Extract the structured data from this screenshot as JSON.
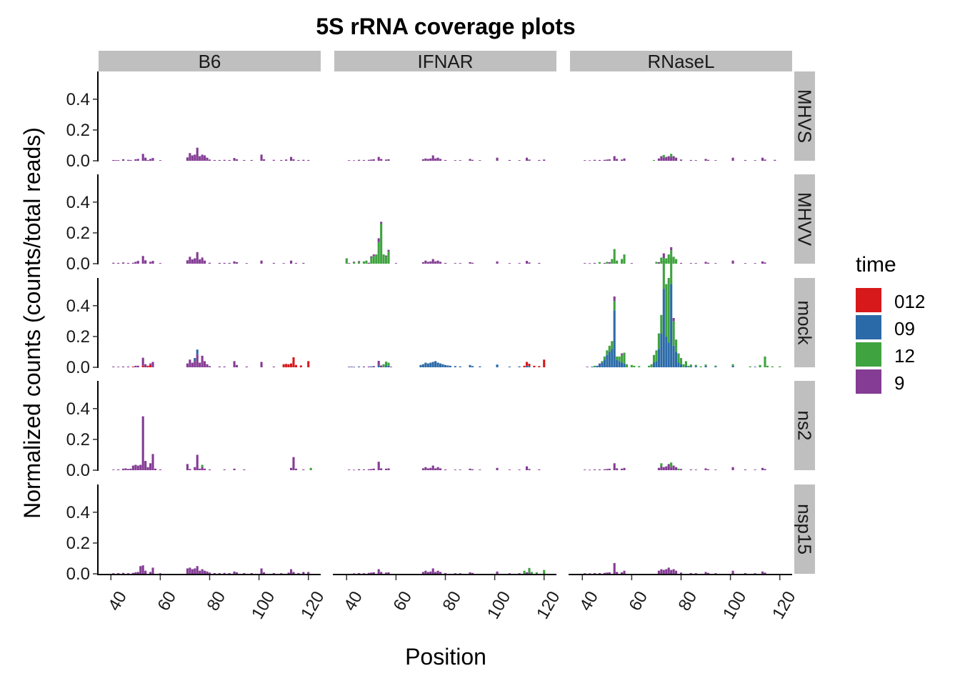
{
  "chart_data": {
    "type": "bar",
    "title": "5S rRNA coverage plots",
    "xlabel": "Position",
    "ylabel": "Normalized counts (counts/total reads)",
    "xlim": [
      35,
      125
    ],
    "ylim": [
      0,
      0.58
    ],
    "x_ticks": [
      40,
      60,
      80,
      100,
      120
    ],
    "y_ticks": [
      0.0,
      0.2,
      0.4
    ],
    "y_tick_labels": [
      "0.0",
      "0.2",
      "0.4"
    ],
    "facet_columns": [
      "B6",
      "IFNAR",
      "RNaseL"
    ],
    "facet_rows": [
      "MHVS",
      "MHVV",
      "mock",
      "ns2",
      "nsp15"
    ],
    "legend": {
      "title": "time",
      "placement": "right",
      "entries": [
        {
          "label": "012",
          "color": "#d7191c"
        },
        {
          "label": "09",
          "color": "#2b6aa8"
        },
        {
          "label": "12",
          "color": "#3fa33f"
        },
        {
          "label": "9",
          "color": "#843c94"
        }
      ]
    },
    "panels": {
      "B6|MHVS": [
        {
          "t": "9",
          "v": {
            "41": 0.005,
            "42": 0.004,
            "43": 0.004,
            "45": 0.01,
            "47": 0.006,
            "48": 0.005,
            "50": 0.01,
            "51": 0.012,
            "53": 0.045,
            "54": 0.02,
            "55": 0.005,
            "56": 0.012,
            "57": 0.018,
            "60": 0.004,
            "71": 0.022,
            "72": 0.05,
            "73": 0.035,
            "74": 0.04,
            "75": 0.085,
            "76": 0.03,
            "77": 0.04,
            "78": 0.035,
            "79": 0.02,
            "80": 0.008,
            "82": 0.005,
            "84": 0.005,
            "86": 0.006,
            "88": 0.005,
            "90": 0.018,
            "91": 0.01,
            "94": 0.005,
            "97": 0.005,
            "101": 0.04,
            "102": 0.01,
            "106": 0.006,
            "109": 0.005,
            "111": 0.008,
            "113": 0.025,
            "114": 0.01,
            "116": 0.005,
            "118": 0.006,
            "120": 0.005
          }
        }
      ],
      "B6|MHVV": [
        {
          "t": "9",
          "v": {
            "41": 0.006,
            "43": 0.005,
            "45": 0.008,
            "47": 0.005,
            "49": 0.006,
            "50": 0.012,
            "51": 0.018,
            "53": 0.05,
            "54": 0.022,
            "56": 0.012,
            "57": 0.018,
            "60": 0.004,
            "71": 0.022,
            "72": 0.045,
            "73": 0.028,
            "74": 0.035,
            "75": 0.075,
            "76": 0.028,
            "77": 0.04,
            "78": 0.02,
            "80": 0.006,
            "84": 0.005,
            "86": 0.005,
            "88": 0.005,
            "90": 0.015,
            "91": 0.01,
            "95": 0.004,
            "101": 0.02,
            "106": 0.005,
            "110": 0.004,
            "113": 0.02,
            "115": 0.005,
            "118": 0.005
          }
        }
      ],
      "B6|mock": [
        {
          "t": "012",
          "v": {
            "49": 0.005,
            "53": 0.012,
            "55": 0.01,
            "56": 0.015,
            "110": 0.02,
            "111": 0.022,
            "112": 0.02,
            "113": 0.025,
            "114": 0.065,
            "115": 0.015,
            "117": 0.012,
            "120": 0.04
          }
        },
        {
          "t": "9",
          "v": {
            "41": 0.005,
            "43": 0.004,
            "45": 0.005,
            "47": 0.005,
            "50": 0.01,
            "51": 0.01,
            "53": 0.05,
            "54": 0.02,
            "56": 0.01,
            "57": 0.035,
            "71": 0.025,
            "72": 0.05,
            "73": 0.03,
            "74": 0.04,
            "75": 0.085,
            "76": 0.03,
            "77": 0.075,
            "78": 0.04,
            "79": 0.02,
            "80": 0.008,
            "84": 0.005,
            "86": 0.005,
            "90": 0.04,
            "91": 0.015,
            "95": 0.005,
            "101": 0.035,
            "106": 0.005
          }
        },
        {
          "t": "09",
          "v": {
            "74": 0.02,
            "75": 0.03
          }
        }
      ],
      "B6|ns2": [
        {
          "t": "9",
          "v": {
            "41": 0.004,
            "43": 0.005,
            "45": 0.01,
            "46": 0.012,
            "47": 0.008,
            "48": 0.01,
            "49": 0.03,
            "50": 0.035,
            "51": 0.03,
            "52": 0.035,
            "53": 0.35,
            "54": 0.06,
            "55": 0.02,
            "56": 0.045,
            "57": 0.105,
            "58": 0.01,
            "60": 0.005,
            "71": 0.04,
            "72": 0.008,
            "74": 0.02,
            "75": 0.1,
            "76": 0.01,
            "77": 0.02,
            "78": 0.01,
            "80": 0.005,
            "86": 0.005,
            "90": 0.01,
            "94": 0.005,
            "113": 0.015,
            "114": 0.085,
            "115": 0.01,
            "118": 0.005
          }
        },
        {
          "t": "12",
          "v": {
            "77": 0.015,
            "121": 0.015
          }
        }
      ],
      "B6|nsp15": [
        {
          "t": "9",
          "v": {
            "41": 0.004,
            "43": 0.005,
            "45": 0.006,
            "47": 0.004,
            "49": 0.006,
            "50": 0.01,
            "51": 0.012,
            "52": 0.05,
            "53": 0.055,
            "54": 0.02,
            "56": 0.012,
            "57": 0.04,
            "60": 0.004,
            "71": 0.035,
            "72": 0.04,
            "73": 0.03,
            "74": 0.035,
            "75": 0.05,
            "76": 0.02,
            "77": 0.03,
            "78": 0.02,
            "79": 0.015,
            "80": 0.008,
            "82": 0.005,
            "84": 0.005,
            "86": 0.006,
            "88": 0.005,
            "90": 0.015,
            "91": 0.01,
            "94": 0.005,
            "97": 0.005,
            "101": 0.035,
            "102": 0.01,
            "106": 0.005,
            "109": 0.004,
            "112": 0.008,
            "113": 0.03,
            "114": 0.012,
            "116": 0.005,
            "118": 0.012,
            "120": 0.012
          }
        }
      ],
      "IFNAR|MHVS": [
        {
          "t": "9",
          "v": {
            "41": 0.004,
            "43": 0.003,
            "45": 0.006,
            "47": 0.005,
            "49": 0.006,
            "50": 0.008,
            "51": 0.01,
            "53": 0.025,
            "54": 0.012,
            "56": 0.008,
            "57": 0.01,
            "71": 0.01,
            "72": 0.015,
            "73": 0.012,
            "74": 0.015,
            "75": 0.035,
            "76": 0.015,
            "77": 0.02,
            "78": 0.012,
            "80": 0.005,
            "84": 0.004,
            "86": 0.004,
            "90": 0.012,
            "91": 0.006,
            "94": 0.004,
            "101": 0.02,
            "106": 0.005,
            "110": 0.004,
            "113": 0.02,
            "114": 0.008,
            "118": 0.005,
            "120": 0.008
          }
        }
      ],
      "IFNAR|MHVV": [
        {
          "t": "12",
          "v": {
            "40": 0.035,
            "43": 0.01,
            "45": 0.012,
            "47": 0.015,
            "48": 0.02,
            "50": 0.04,
            "51": 0.05,
            "52": 0.06,
            "53": 0.14,
            "54": 0.26,
            "55": 0.06,
            "56": 0.045,
            "57": 0.08
          }
        },
        {
          "t": "9",
          "v": {
            "41": 0.004,
            "43": 0.003,
            "45": 0.005,
            "49": 0.006,
            "50": 0.008,
            "51": 0.01,
            "53": 0.025,
            "54": 0.012,
            "56": 0.008,
            "57": 0.01,
            "60": 0.004,
            "71": 0.01,
            "72": 0.02,
            "73": 0.012,
            "74": 0.015,
            "75": 0.03,
            "76": 0.015,
            "77": 0.02,
            "78": 0.012,
            "80": 0.005,
            "84": 0.004,
            "86": 0.004,
            "90": 0.01,
            "91": 0.006,
            "101": 0.015,
            "106": 0.004,
            "110": 0.004,
            "113": 0.018,
            "114": 0.008,
            "118": 0.005
          }
        }
      ],
      "IFNAR|mock": [
        {
          "t": "09",
          "v": {
            "42": 0.004,
            "45": 0.005,
            "50": 0.006,
            "53": 0.012,
            "56": 0.012,
            "57": 0.01,
            "70": 0.015,
            "71": 0.02,
            "72": 0.03,
            "73": 0.025,
            "74": 0.03,
            "75": 0.035,
            "76": 0.04,
            "77": 0.03,
            "78": 0.025,
            "79": 0.02,
            "80": 0.015,
            "81": 0.012,
            "82": 0.01,
            "84": 0.008,
            "86": 0.006,
            "90": 0.015,
            "91": 0.008,
            "94": 0.006,
            "101": 0.018,
            "106": 0.005,
            "110": 0.006,
            "113": 0.01,
            "114": 0.008
          }
        },
        {
          "t": "9",
          "v": {
            "41": 0.004,
            "43": 0.003,
            "47": 0.005,
            "49": 0.005,
            "51": 0.008,
            "53": 0.03,
            "54": 0.012,
            "58": 0.004
          }
        },
        {
          "t": "12",
          "v": {
            "55": 0.02,
            "56": 0.025,
            "57": 0.02
          }
        },
        {
          "t": "012",
          "v": {
            "112": 0.01,
            "113": 0.025,
            "114": 0.015,
            "116": 0.01,
            "118": 0.008,
            "120": 0.05
          }
        }
      ],
      "IFNAR|ns2": [
        {
          "t": "9",
          "v": {
            "41": 0.004,
            "43": 0.003,
            "45": 0.006,
            "47": 0.005,
            "49": 0.006,
            "50": 0.008,
            "51": 0.01,
            "53": 0.055,
            "54": 0.012,
            "56": 0.01,
            "57": 0.012,
            "71": 0.012,
            "72": 0.02,
            "73": 0.012,
            "74": 0.015,
            "75": 0.03,
            "76": 0.012,
            "77": 0.02,
            "78": 0.012,
            "80": 0.005,
            "84": 0.004,
            "86": 0.004,
            "90": 0.01,
            "91": 0.006,
            "94": 0.004,
            "101": 0.015,
            "106": 0.004,
            "110": 0.004,
            "113": 0.025,
            "114": 0.008,
            "118": 0.005
          }
        }
      ],
      "IFNAR|nsp15": [
        {
          "t": "9",
          "v": {
            "43": 0.003,
            "45": 0.005,
            "47": 0.004,
            "49": 0.006,
            "50": 0.008,
            "51": 0.01,
            "53": 0.03,
            "54": 0.012,
            "56": 0.008,
            "57": 0.01,
            "71": 0.012,
            "72": 0.02,
            "73": 0.012,
            "74": 0.015,
            "75": 0.035,
            "76": 0.012,
            "77": 0.02,
            "78": 0.012,
            "80": 0.005,
            "84": 0.004,
            "86": 0.004,
            "90": 0.01,
            "91": 0.006,
            "101": 0.015,
            "106": 0.004,
            "110": 0.004,
            "113": 0.01,
            "114": 0.008
          }
        },
        {
          "t": "12",
          "v": {
            "112": 0.02,
            "114": 0.03,
            "115": 0.012,
            "117": 0.01,
            "120": 0.025
          }
        }
      ],
      "RNaseL|MHVS": [
        {
          "t": "9",
          "v": {
            "41": 0.004,
            "43": 0.003,
            "45": 0.006,
            "47": 0.005,
            "49": 0.006,
            "50": 0.008,
            "51": 0.01,
            "53": 0.03,
            "54": 0.012,
            "56": 0.008,
            "57": 0.015,
            "71": 0.015,
            "72": 0.03,
            "73": 0.02,
            "74": 0.025,
            "75": 0.03,
            "76": 0.025,
            "77": 0.03,
            "78": 0.02,
            "80": 0.008,
            "84": 0.005,
            "86": 0.004,
            "90": 0.012,
            "91": 0.006,
            "94": 0.004,
            "101": 0.02,
            "106": 0.005,
            "110": 0.004,
            "113": 0.02,
            "114": 0.008,
            "118": 0.006
          }
        },
        {
          "t": "12",
          "v": {
            "69": 0.005,
            "73": 0.018,
            "76": 0.02
          }
        }
      ],
      "RNaseL|MHVV": [
        {
          "t": "12",
          "v": {
            "47": 0.01,
            "50": 0.012,
            "52": 0.03,
            "53": 0.095,
            "54": 0.02,
            "56": 0.03,
            "57": 0.06,
            "70": 0.012,
            "72": 0.04,
            "73": 0.02,
            "74": 0.035,
            "75": 0.06,
            "76": 0.04,
            "77": 0.045,
            "78": 0.03
          }
        },
        {
          "t": "9",
          "v": {
            "41": 0.004,
            "43": 0.003,
            "45": 0.005,
            "49": 0.005,
            "51": 0.01,
            "60": 0.004,
            "71": 0.01,
            "80": 0.005,
            "84": 0.004,
            "86": 0.004,
            "90": 0.012,
            "91": 0.006,
            "94": 0.004,
            "101": 0.02,
            "106": 0.004,
            "110": 0.004,
            "113": 0.015,
            "114": 0.008
          }
        }
      ],
      "RNaseL|mock": [
        {
          "t": "09",
          "v": {
            "44": 0.005,
            "46": 0.01,
            "47": 0.02,
            "48": 0.03,
            "49": 0.05,
            "50": 0.08,
            "51": 0.1,
            "52": 0.12,
            "53": 0.37,
            "54": 0.05,
            "55": 0.04,
            "56": 0.03,
            "57": 0.025,
            "69": 0.03,
            "70": 0.04,
            "71": 0.12,
            "72": 0.22,
            "73": 0.51,
            "74": 0.2,
            "75": 0.16,
            "76": 0.54,
            "77": 0.14,
            "78": 0.1,
            "79": 0.03,
            "80": 0.02,
            "82": 0.01,
            "84": 0.008,
            "86": 0.008,
            "90": 0.01,
            "94": 0.006,
            "101": 0.01,
            "110": 0.004
          }
        },
        {
          "t": "12",
          "v": {
            "45": 0.01,
            "48": 0.01,
            "49": 0.02,
            "50": 0.03,
            "51": 0.04,
            "52": 0.05,
            "53": 0.06,
            "54": 0.02,
            "55": 0.03,
            "56": 0.05,
            "57": 0.07,
            "58": 0.02,
            "60": 0.015,
            "61": 0.01,
            "63": 0.008,
            "67": 0.01,
            "68": 0.02,
            "69": 0.05,
            "70": 0.07,
            "71": 0.1,
            "72": 0.12,
            "73": 0.2,
            "74": 0.34,
            "75": 0.42,
            "76": 0.22,
            "77": 0.16,
            "78": 0.08,
            "79": 0.06,
            "80": 0.04,
            "81": 0.02,
            "82": 0.03,
            "83": 0.01,
            "84": 0.01,
            "86": 0.008,
            "88": 0.006,
            "90": 0.008,
            "94": 0.005,
            "101": 0.01,
            "108": 0.006,
            "112": 0.015,
            "114": 0.07,
            "115": 0.01,
            "117": 0.006,
            "120": 0.006
          }
        },
        {
          "t": "9",
          "v": {
            "42": 0.004,
            "47": 0.005,
            "53": 0.03,
            "56": 0.01,
            "73": 0.03,
            "76": 0.02,
            "77": 0.02
          }
        }
      ],
      "RNaseL|ns2": [
        {
          "t": "9",
          "v": {
            "41": 0.004,
            "43": 0.003,
            "45": 0.005,
            "47": 0.005,
            "49": 0.006,
            "50": 0.008,
            "51": 0.01,
            "53": 0.045,
            "54": 0.012,
            "56": 0.01,
            "57": 0.015,
            "71": 0.015,
            "72": 0.025,
            "73": 0.02,
            "74": 0.025,
            "75": 0.04,
            "76": 0.02,
            "77": 0.03,
            "78": 0.02,
            "80": 0.008,
            "84": 0.005,
            "86": 0.004,
            "90": 0.012,
            "91": 0.006,
            "94": 0.004,
            "101": 0.02,
            "106": 0.005,
            "110": 0.004,
            "113": 0.015,
            "114": 0.008
          }
        },
        {
          "t": "12",
          "v": {
            "72": 0.02,
            "76": 0.03,
            "79": 0.01
          }
        }
      ],
      "RNaseL|nsp15": [
        {
          "t": "9",
          "v": {
            "41": 0.004,
            "43": 0.003,
            "45": 0.005,
            "47": 0.005,
            "49": 0.006,
            "50": 0.008,
            "51": 0.01,
            "53": 0.07,
            "54": 0.012,
            "56": 0.01,
            "57": 0.02,
            "71": 0.02,
            "72": 0.03,
            "73": 0.025,
            "74": 0.03,
            "75": 0.04,
            "76": 0.025,
            "77": 0.03,
            "78": 0.02,
            "80": 0.008,
            "84": 0.005,
            "86": 0.004,
            "90": 0.012,
            "91": 0.006,
            "94": 0.004,
            "101": 0.02,
            "106": 0.005,
            "110": 0.004,
            "113": 0.015,
            "114": 0.008
          }
        }
      ]
    }
  }
}
